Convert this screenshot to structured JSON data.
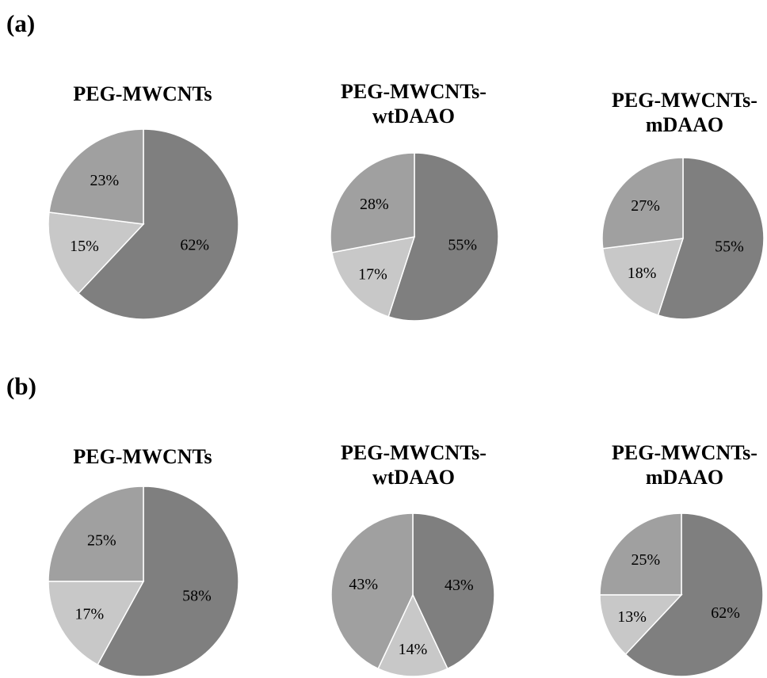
{
  "panels": {
    "a": {
      "label": "(a)"
    },
    "b": {
      "label": "(b)"
    }
  },
  "colors": {
    "large": "#7f7f7f",
    "small": "#c8c8c8",
    "medium": "#a0a0a0"
  },
  "chart_data": [
    {
      "type": "pie",
      "panel": "(a)",
      "title": "PEG-MWCNTs",
      "values": [
        62,
        15,
        23
      ],
      "labels": [
        "62%",
        "15%",
        "23%"
      ]
    },
    {
      "type": "pie",
      "panel": "(a)",
      "title": "PEG-MWCNTs-wtDAAO",
      "values": [
        55,
        17,
        28
      ],
      "labels": [
        "55%",
        "17%",
        "28%"
      ]
    },
    {
      "type": "pie",
      "panel": "(a)",
      "title": "PEG-MWCNTs-mDAAO",
      "values": [
        55,
        18,
        27
      ],
      "labels": [
        "55%",
        "18%",
        "27%"
      ]
    },
    {
      "type": "pie",
      "panel": "(b)",
      "title": "PEG-MWCNTs",
      "values": [
        58,
        17,
        25
      ],
      "labels": [
        "58%",
        "17%",
        "25%"
      ]
    },
    {
      "type": "pie",
      "panel": "(b)",
      "title": "PEG-MWCNTs-wtDAAO",
      "values": [
        43,
        14,
        43
      ],
      "labels": [
        "43%",
        "14%",
        "43%"
      ]
    },
    {
      "type": "pie",
      "panel": "(b)",
      "title": "PEG-MWCNTs-mDAAO",
      "values": [
        62,
        13,
        25
      ],
      "labels": [
        "62%",
        "13%",
        "25%"
      ]
    }
  ]
}
